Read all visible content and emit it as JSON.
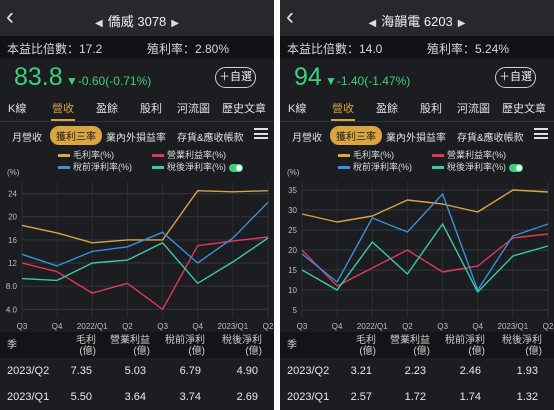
{
  "panels": [
    {
      "stock": {
        "name": "僑威",
        "code": "3078"
      },
      "pe_label": "本益比倍數：17.2",
      "yield_label": "殖利率：2.80%",
      "price": "83.8",
      "change": "▼-0.60(-0.71%)",
      "fav_label": "＋自選",
      "tabs": [
        "K線",
        "營收",
        "盈餘",
        "股利",
        "河流圖",
        "歷史文章"
      ],
      "subtabs": [
        "月營收",
        "獲利三率",
        "業內外損益率",
        "存貨&應收帳款"
      ],
      "legend": [
        "毛利率(%)",
        "營業利益率(%)",
        "稅前淨利率(%)",
        "稅後淨利率(%)"
      ],
      "unit": "(%)",
      "table": {
        "headers": [
          "季",
          "毛利\n(億)",
          "營業利益\n(億)",
          "稅前淨利\n(億)",
          "稅後淨利\n(億)"
        ],
        "rows": [
          [
            "2023/Q2",
            "7.35",
            "5.03",
            "6.79",
            "4.90"
          ],
          [
            "2023/Q1",
            "5.50",
            "3.64",
            "3.74",
            "2.69"
          ]
        ]
      },
      "chart_data": {
        "type": "line",
        "x": [
          "Q3",
          "Q4",
          "2022/Q1",
          "Q2",
          "Q3",
          "Q4",
          "2023/Q1",
          "Q2"
        ],
        "y_ticks": [
          4,
          8,
          12,
          16,
          20,
          24
        ],
        "y_tick_labels": [
          "4.0",
          "8.0",
          "12",
          "16",
          "20",
          "24"
        ],
        "ylim": [
          2.5,
          26
        ],
        "series": [
          {
            "name": "毛利率(%)",
            "color": "#d9a441",
            "values": [
              18.5,
              17.2,
              15.5,
              16.0,
              16.0,
              24.5,
              24.3,
              24.5
            ]
          },
          {
            "name": "營業利益率(%)",
            "color": "#e0385a",
            "values": [
              12.0,
              10.5,
              6.8,
              8.5,
              4.0,
              15.0,
              15.8,
              16.5
            ]
          },
          {
            "name": "稅前淨利率(%)",
            "color": "#3a8fd9",
            "values": [
              13.5,
              11.5,
              14.0,
              14.8,
              17.3,
              12.0,
              16.3,
              22.5
            ]
          },
          {
            "name": "稅後淨利率(%)",
            "color": "#3ec9a0",
            "values": [
              9.3,
              9.0,
              12.0,
              12.5,
              15.5,
              8.5,
              12.2,
              16.3
            ]
          }
        ]
      }
    },
    {
      "stock": {
        "name": "海韻電",
        "code": "6203"
      },
      "pe_label": "本益比倍數：14.0",
      "yield_label": "殖利率：5.24%",
      "price": "94",
      "change": "▼-1.40(-1.47%)",
      "fav_label": "＋自選",
      "tabs": [
        "K線",
        "營收",
        "盈餘",
        "股利",
        "河流圖",
        "歷史文章"
      ],
      "subtabs": [
        "月營收",
        "獲利三率",
        "業內外損益率",
        "存貨&應收帳款"
      ],
      "legend": [
        "毛利率(%)",
        "營業利益率(%)",
        "稅前淨利率(%)",
        "稅後淨利率(%)"
      ],
      "unit": "(%)",
      "table": {
        "headers": [
          "季",
          "毛利\n(億)",
          "營業利益\n(億)",
          "稅前淨利\n(億)",
          "稅後淨利\n(億)"
        ],
        "rows": [
          [
            "2023/Q2",
            "3.21",
            "2.23",
            "2.46",
            "1.93"
          ],
          [
            "2023/Q1",
            "2.57",
            "1.72",
            "1.74",
            "1.32"
          ]
        ]
      },
      "chart_data": {
        "type": "line",
        "x": [
          "Q3",
          "Q4",
          "2022/Q1",
          "Q2",
          "Q3",
          "Q4",
          "2023/Q1",
          "Q2"
        ],
        "y_ticks": [
          5,
          10,
          15,
          20,
          25,
          30,
          35
        ],
        "y_tick_labels": [
          "5",
          "10",
          "15",
          "20",
          "25",
          "30",
          "35"
        ],
        "ylim": [
          3,
          37
        ],
        "series": [
          {
            "name": "毛利率(%)",
            "color": "#d9a441",
            "values": [
              29.0,
              27.0,
              28.5,
              32.5,
              31.5,
              29.5,
              35.0,
              34.5
            ]
          },
          {
            "name": "營業利益率(%)",
            "color": "#e0385a",
            "values": [
              20.0,
              11.0,
              15.5,
              20.0,
              14.5,
              16.0,
              23.0,
              24.0
            ]
          },
          {
            "name": "稅前淨利率(%)",
            "color": "#3a8fd9",
            "values": [
              19.0,
              12.0,
              28.0,
              24.5,
              34.0,
              10.0,
              23.5,
              26.5
            ]
          },
          {
            "name": "稅後淨利率(%)",
            "color": "#3ec9a0",
            "values": [
              15.0,
              10.0,
              22.0,
              14.0,
              26.5,
              9.5,
              18.5,
              21.0
            ]
          }
        ]
      }
    }
  ]
}
